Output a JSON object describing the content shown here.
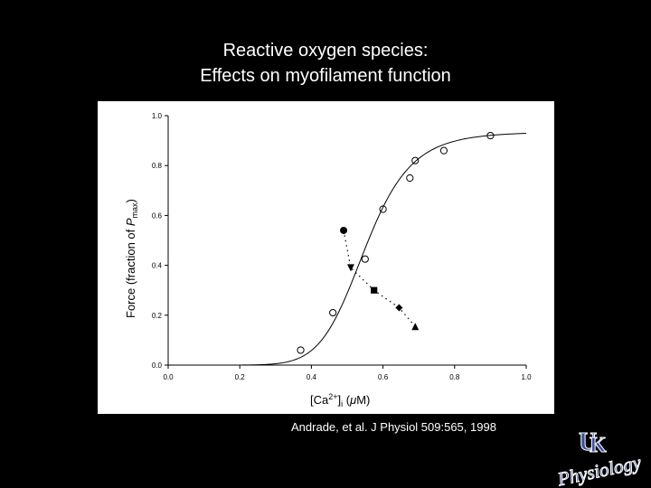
{
  "slide": {
    "title_line_1": "Reactive oxygen species:",
    "title_line_2": "Effects on myofilament function",
    "citation": "Andrade, et al. J Physiol 509:565, 1998"
  },
  "logo": {
    "text": "UK Physiology",
    "color": "#3a4fa0"
  },
  "chart_data": {
    "type": "scatter",
    "xlabel_main": "[Ca",
    "xlabel_sup": "2+",
    "xlabel_bracket": "]",
    "xlabel_sub": "i",
    "xlabel_unit_open": " (",
    "xlabel_unit_mu": "μ",
    "xlabel_unit_rest": "M)",
    "ylabel_main": "Force  (fraction of ",
    "ylabel_italic": "P",
    "ylabel_sub": "max",
    "ylabel_close": ")",
    "xlim": [
      0.0,
      1.0
    ],
    "ylim": [
      0.0,
      1.0
    ],
    "x_ticks": [
      "0.0",
      "0.2",
      "0.4",
      "0.6",
      "0.8",
      "1.0"
    ],
    "y_ticks": [
      "0.0",
      "0.2",
      "0.4",
      "0.6",
      "0.8",
      "1.0"
    ],
    "fit_curve": {
      "ca50": 0.55,
      "hill": 8.5,
      "fmax": 0.935
    },
    "control_points": [
      {
        "x": 0.37,
        "y": 0.06
      },
      {
        "x": 0.46,
        "y": 0.21
      },
      {
        "x": 0.55,
        "y": 0.425
      },
      {
        "x": 0.6,
        "y": 0.625
      },
      {
        "x": 0.675,
        "y": 0.75
      },
      {
        "x": 0.69,
        "y": 0.82
      },
      {
        "x": 0.77,
        "y": 0.86
      },
      {
        "x": 0.9,
        "y": 0.92
      }
    ],
    "treatment_points": [
      {
        "x": 0.49,
        "y": 0.54,
        "marker": "circle"
      },
      {
        "x": 0.51,
        "y": 0.39,
        "marker": "triangle-down"
      },
      {
        "x": 0.575,
        "y": 0.3,
        "marker": "square"
      },
      {
        "x": 0.645,
        "y": 0.23,
        "marker": "diamond"
      },
      {
        "x": 0.69,
        "y": 0.155,
        "marker": "triangle-up"
      }
    ]
  }
}
